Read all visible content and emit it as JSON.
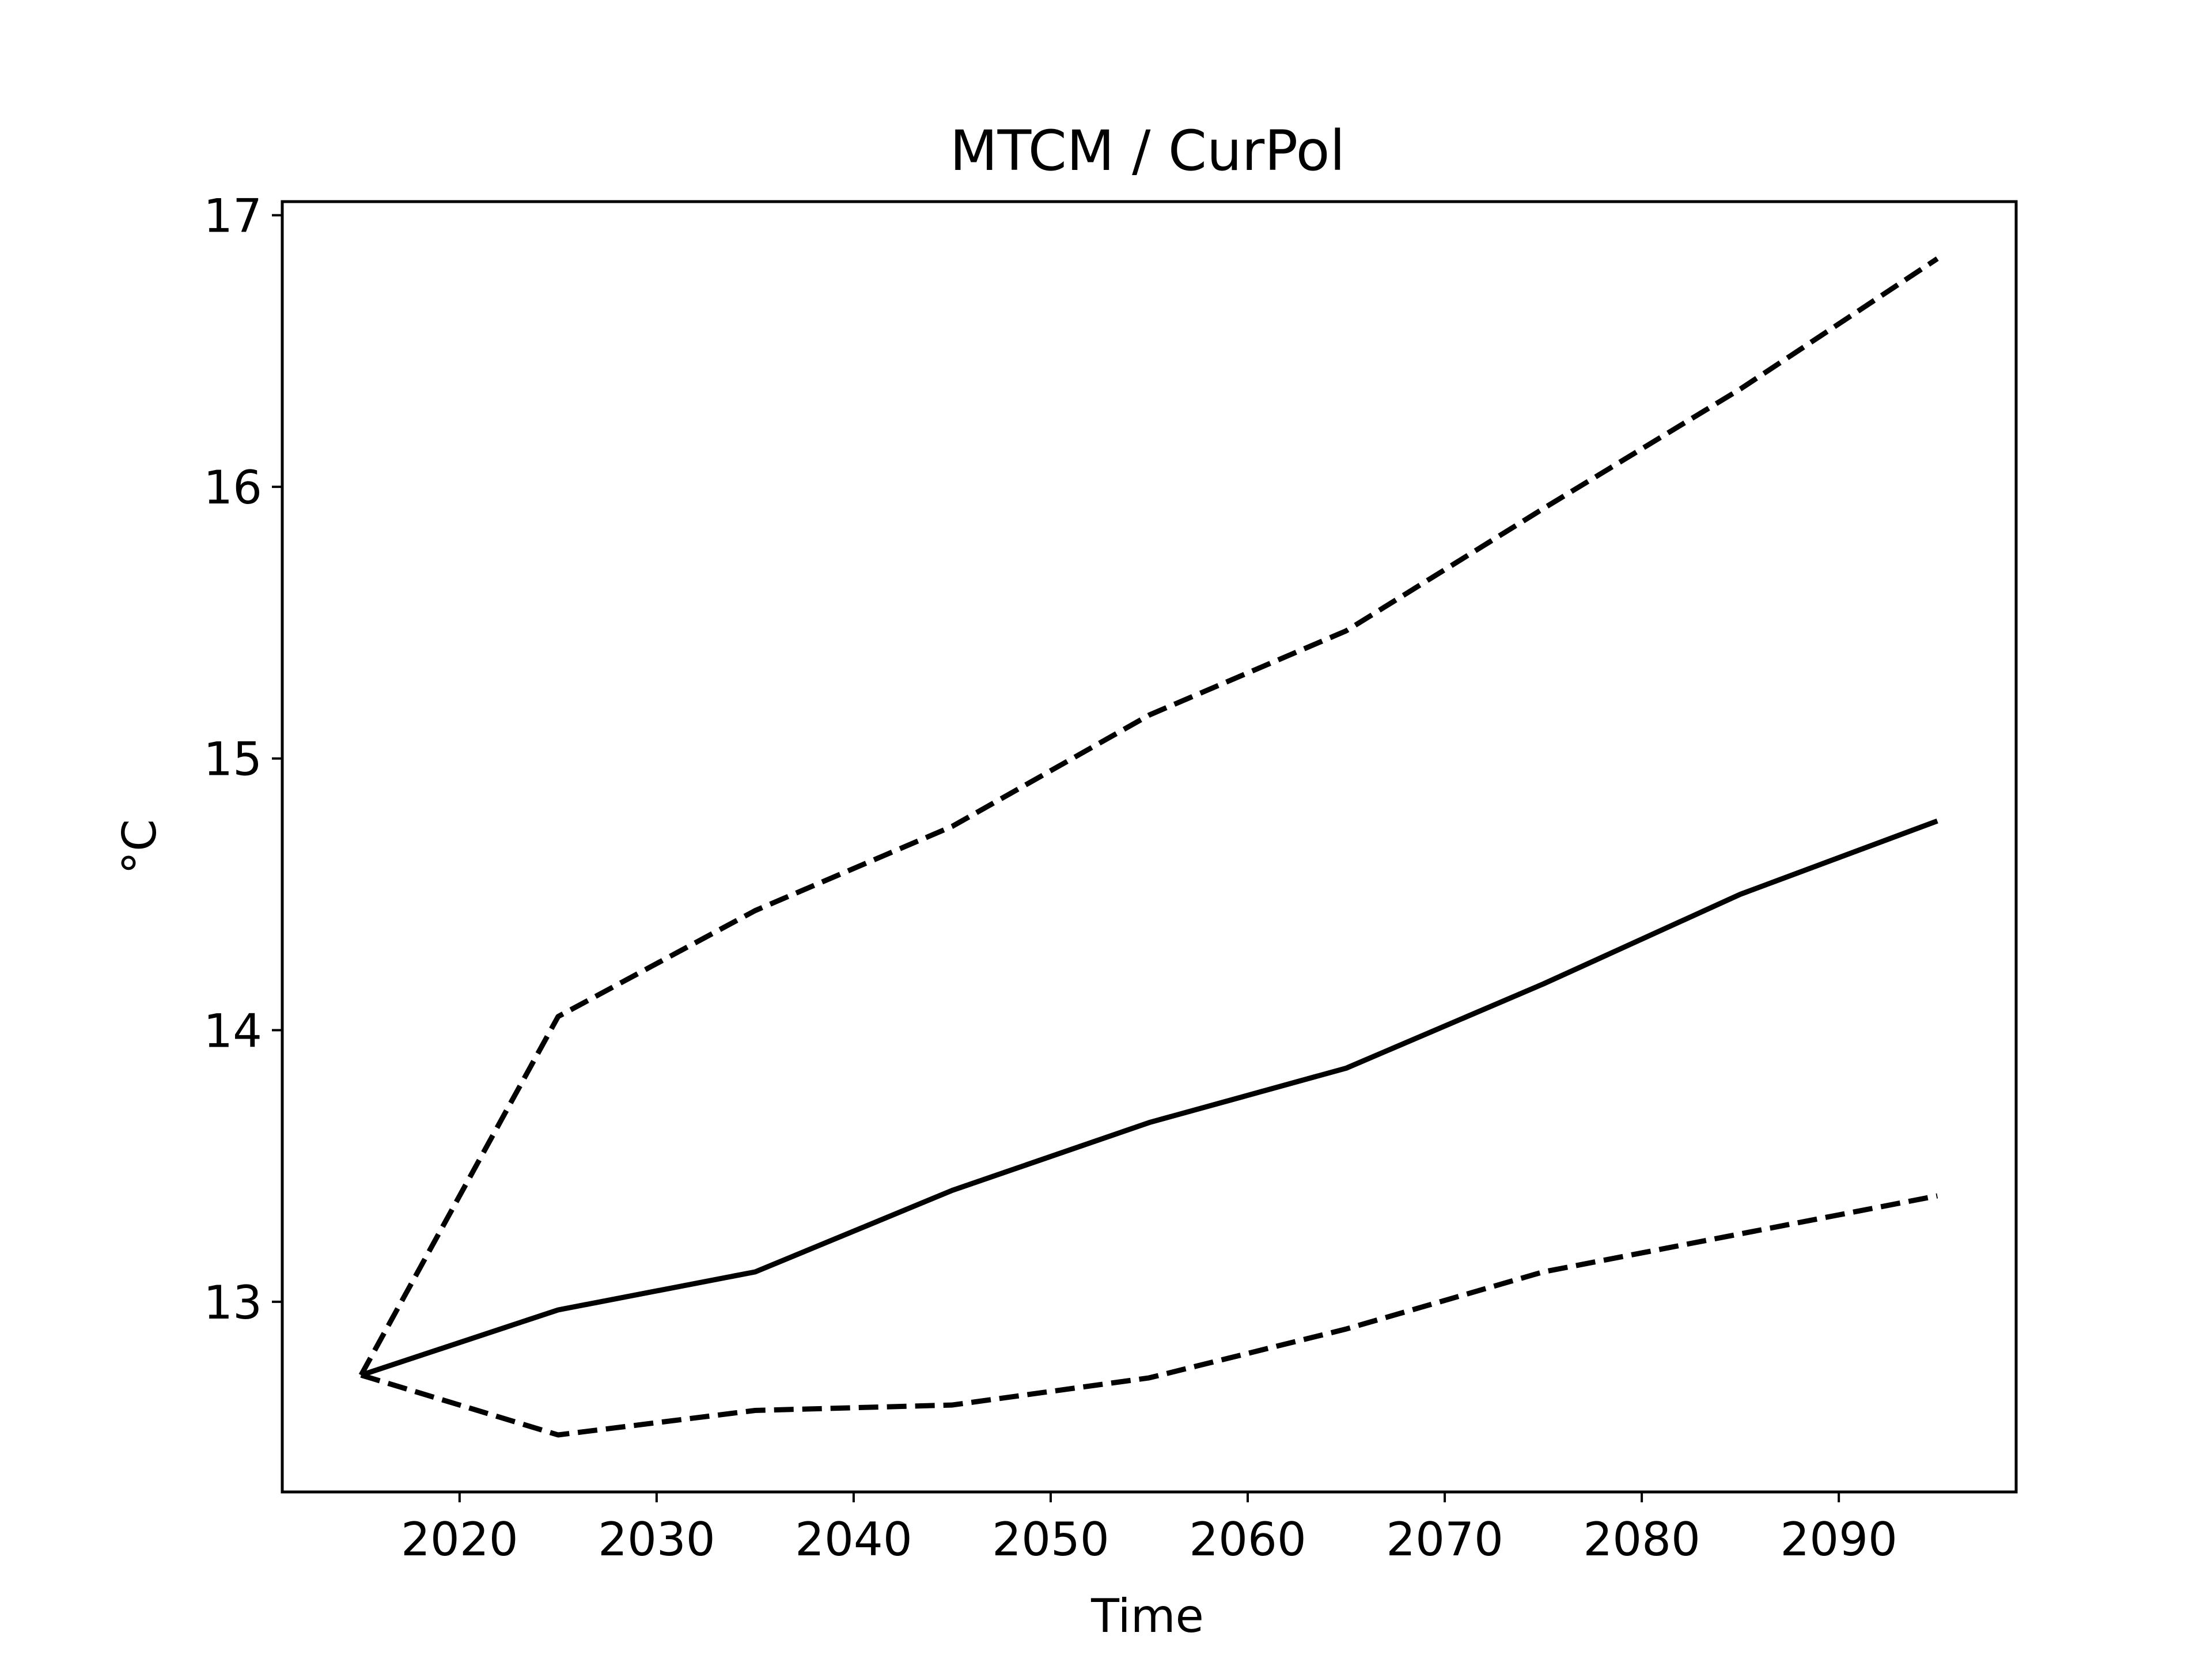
{
  "chart_data": {
    "type": "line",
    "title": "MTCM / CurPol",
    "xlabel": "Time",
    "ylabel": "°C",
    "xlim": [
      2011,
      2099
    ],
    "ylim": [
      12.3,
      17.05
    ],
    "xticks": [
      2020,
      2030,
      2040,
      2050,
      2060,
      2070,
      2080,
      2090
    ],
    "yticks": [
      13,
      14,
      15,
      16,
      17
    ],
    "grid": false,
    "legend": "none",
    "series": [
      {
        "style": "dashed",
        "color": "#000000",
        "x": [
          2015,
          2025,
          2035,
          2045,
          2055,
          2065,
          2075,
          2085,
          2095
        ],
        "y": [
          12.73,
          14.05,
          14.44,
          14.75,
          15.16,
          15.47,
          15.92,
          16.36,
          16.84
        ]
      },
      {
        "style": "solid",
        "color": "#000000",
        "x": [
          2015,
          2025,
          2035,
          2045,
          2055,
          2065,
          2075,
          2085,
          2095
        ],
        "y": [
          12.73,
          12.97,
          13.11,
          13.41,
          13.66,
          13.86,
          14.17,
          14.5,
          14.77
        ]
      },
      {
        "style": "dashed",
        "color": "#000000",
        "x": [
          2015,
          2025,
          2035,
          2045,
          2055,
          2065,
          2075,
          2085,
          2095
        ],
        "y": [
          12.73,
          12.51,
          12.6,
          12.62,
          12.72,
          12.9,
          13.11,
          13.25,
          13.39
        ]
      }
    ]
  }
}
